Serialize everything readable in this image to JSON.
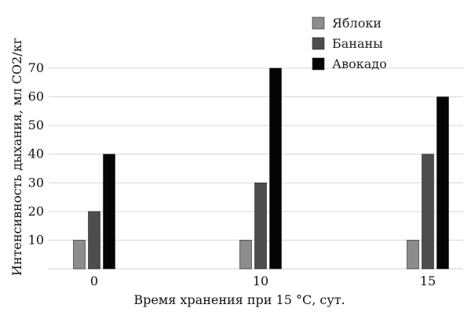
{
  "chart_data": {
    "type": "bar",
    "title": "",
    "xlabel": "Время хранения при 15 °С, сут.",
    "ylabel": "Интенсивность дыхания, мл СО2/кг",
    "categories": [
      "0",
      "10",
      "15"
    ],
    "series": [
      {
        "name": "Яблоки",
        "values": [
          10,
          10,
          10
        ],
        "color": "#8c8c8c"
      },
      {
        "name": "Бананы",
        "values": [
          20,
          30,
          40
        ],
        "color": "#4d4d4d"
      },
      {
        "name": "Авокадо",
        "values": [
          40,
          70,
          60
        ],
        "color": "#050505"
      }
    ],
    "ylim": [
      0,
      70
    ],
    "yticks": [
      "10",
      "20",
      "30",
      "40",
      "50",
      "60",
      "70"
    ],
    "grid": "horizontal",
    "legend_position": "top-right"
  }
}
